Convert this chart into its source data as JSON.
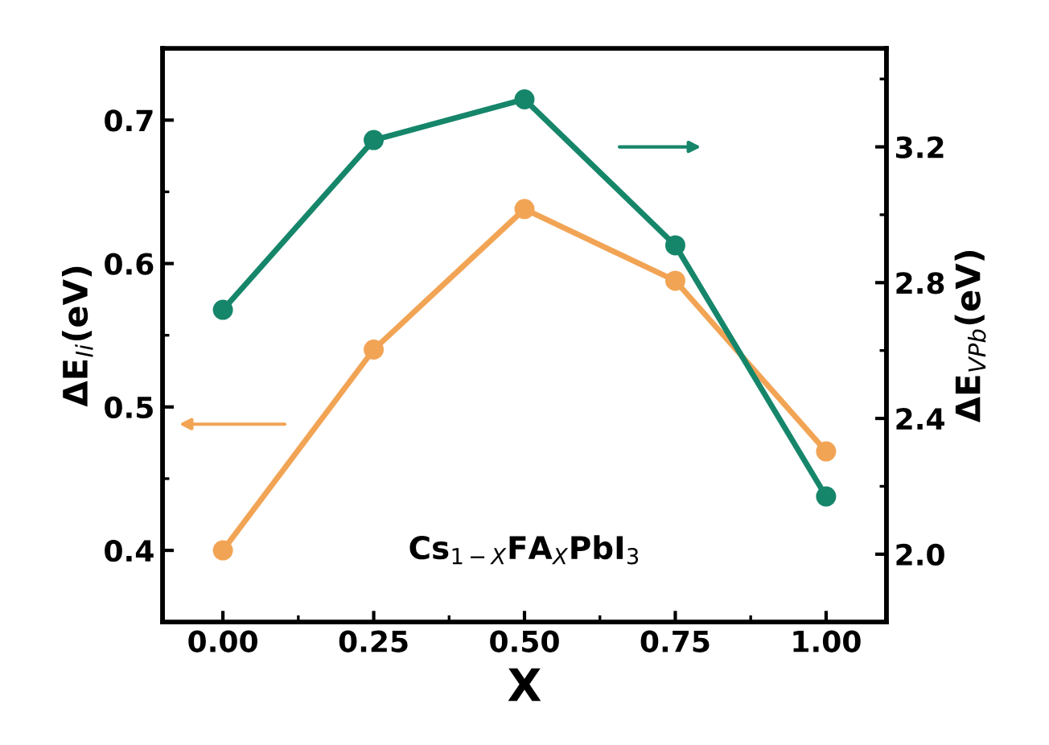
{
  "chart_data": {
    "type": "line",
    "xlabel": "X",
    "ylabel": "ΔE$_{Ii}$(eV)",
    "y2label": "ΔE$_{VPb}$(eV)",
    "x": [
      0,
      0.25,
      0.5,
      0.75,
      1.0
    ],
    "series": [
      {
        "color": "#f2a455",
        "values": [
          0.4,
          0.54,
          0.638,
          0.588,
          0.469
        ]
      },
      {
        "color": "#16866a",
        "axis": "y2",
        "values": [
          2.72,
          3.22,
          3.34,
          2.91,
          2.17
        ]
      }
    ],
    "xlim": [
      -0.1,
      1.1
    ],
    "xticks": [
      {
        "value": 0,
        "label": "0.00"
      },
      {
        "value": 0.25,
        "label": "0.25"
      },
      {
        "value": 0.5,
        "label": "0.50"
      },
      {
        "value": 0.75,
        "label": "0.75"
      },
      {
        "value": 1.0,
        "label": "1.00"
      }
    ],
    "ylim": [
      0.35,
      0.75
    ],
    "yticks": [
      0.4,
      0.5,
      0.6,
      0.7
    ],
    "y2lim": [
      1.8,
      3.49
    ],
    "y2ticks": [
      {
        "value": 2.0,
        "label": "2.0"
      },
      2.4,
      2.8,
      3.2
    ],
    "annotations": [
      "Cs$_{1−X}$FA$_{X}$PbI$_{3}$"
    ],
    "marker": "circle",
    "line_style": "solid",
    "grid": false,
    "legend": false
  }
}
